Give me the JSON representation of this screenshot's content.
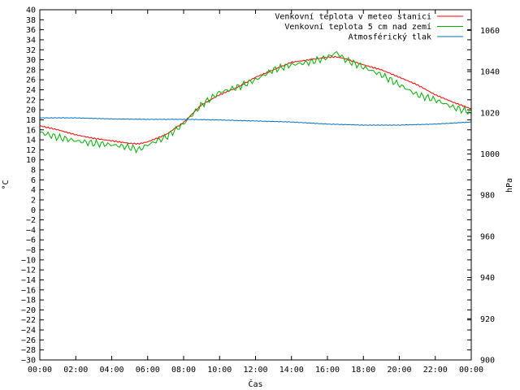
{
  "chart_data": {
    "type": "line",
    "xlabel": "Čas",
    "ylabel_left": "°C",
    "ylabel_right": "hPa",
    "x_ticks": [
      "00:00",
      "02:00",
      "04:00",
      "06:00",
      "08:00",
      "10:00",
      "12:00",
      "14:00",
      "16:00",
      "18:00",
      "20:00",
      "22:00",
      "00:00"
    ],
    "xlim": [
      0,
      24
    ],
    "ylim_left": [
      -30,
      40
    ],
    "ylim_right": [
      900,
      1070
    ],
    "y_ticks_left": [
      -30,
      -28,
      -26,
      -24,
      -22,
      -20,
      -18,
      -16,
      -14,
      -12,
      -10,
      -8,
      -6,
      -4,
      -2,
      0,
      2,
      4,
      6,
      8,
      10,
      12,
      14,
      16,
      18,
      20,
      22,
      24,
      26,
      28,
      30,
      32,
      34,
      36,
      38,
      40
    ],
    "y_ticks_right": [
      900,
      920,
      940,
      960,
      980,
      1000,
      1020,
      1040,
      1060
    ],
    "grid": false,
    "legend_position": "top-right",
    "series": [
      {
        "name": "Venkovní teplota v meteo stanici",
        "color": "#ff0000",
        "axis": "left",
        "x": [
          0,
          1,
          2,
          3,
          4,
          5,
          5.5,
          6,
          7,
          8,
          9,
          10,
          11,
          12,
          13,
          14,
          15,
          16,
          16.5,
          17,
          18,
          19,
          20,
          21,
          22,
          23,
          24
        ],
        "y": [
          16.8,
          16,
          15,
          14.3,
          13.8,
          13.3,
          13.2,
          13.6,
          15,
          17.5,
          21,
          23,
          24.5,
          26.5,
          28,
          29.5,
          30,
          30.5,
          30.6,
          30.2,
          29,
          28,
          26.5,
          25,
          23,
          21.5,
          20.2
        ]
      },
      {
        "name": "Venkovní teplota 5 cm nad zemí",
        "color": "#00b000",
        "axis": "left",
        "x": [
          0,
          1,
          2,
          3,
          4,
          5,
          5.5,
          6,
          7,
          8,
          9,
          10,
          11,
          12,
          13,
          14,
          15,
          16,
          16.5,
          17,
          18,
          19,
          20,
          21,
          22,
          23,
          24
        ],
        "y": [
          15.5,
          14.5,
          13.8,
          13.3,
          13,
          12.5,
          12,
          13,
          14.5,
          17.2,
          21,
          23.5,
          24.5,
          26,
          28,
          29,
          29.5,
          30.5,
          31.5,
          30,
          28.5,
          27,
          25,
          23,
          22,
          20.5,
          19.5
        ]
      },
      {
        "name": "Atmosférický tlak",
        "color": "#0070c0",
        "axis": "right",
        "x": [
          0,
          2,
          4,
          6,
          8,
          10,
          12,
          14,
          16,
          18,
          20,
          22,
          24
        ],
        "y": [
          1017.5,
          1017.5,
          1017,
          1016.8,
          1016.8,
          1016.5,
          1016,
          1015.5,
          1014.5,
          1014,
          1014,
          1014.5,
          1015.5
        ]
      }
    ]
  }
}
